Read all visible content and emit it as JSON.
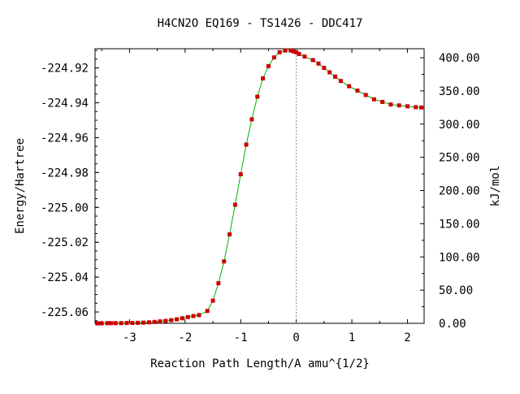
{
  "chart_data": {
    "type": "line",
    "title": "H4CN2O   EQ169 - TS1426 - DDC417",
    "xlabel": "Reaction Path Length/A amu^{1/2}",
    "ylabel": "Energy/Hartree",
    "y2label": "kJ/mol",
    "xlim": [
      -3.62,
      2.3
    ],
    "ylim": [
      -225.0665,
      -224.909
    ],
    "y2lim": [
      0,
      413.5
    ],
    "x_ticks": [
      -3,
      -2,
      -1,
      0,
      1,
      2
    ],
    "x_tick_labels": [
      "-3",
      "-2",
      "-1",
      "0",
      "1",
      "2"
    ],
    "y_ticks": [
      -224.92,
      -224.94,
      -224.96,
      -224.98,
      -225.0,
      -225.02,
      -225.04,
      -225.06
    ],
    "y_tick_labels": [
      "-224.92",
      "-224.94",
      "-224.96",
      "-224.98",
      "-225.00",
      "-225.02",
      "-225.04",
      "-225.06"
    ],
    "y2_ticks": [
      0,
      50,
      100,
      150,
      200,
      250,
      300,
      350,
      400
    ],
    "y2_tick_labels": [
      "0.00",
      "50.00",
      "100.00",
      "150.00",
      "200.00",
      "250.00",
      "300.00",
      "350.00",
      "400.00"
    ],
    "ts_x": 0,
    "grid": false,
    "line_color": "#00b000",
    "marker_color": "#cc0000",
    "ts_line_color": "#888888",
    "series": [
      {
        "x": [
          -3.58,
          -3.55,
          -3.52,
          -3.5,
          -3.4,
          -3.33,
          -3.25,
          -3.15,
          -3.05,
          -2.95,
          -2.85,
          -2.75,
          -2.65,
          -2.55,
          -2.45,
          -2.35,
          -2.25,
          -2.15,
          -2.05,
          -1.95,
          -1.85,
          -1.75,
          -1.6,
          -1.5,
          -1.4,
          -1.3,
          -1.2,
          -1.1,
          -1.0,
          -0.9,
          -0.8,
          -0.7,
          -0.6,
          -0.5,
          -0.4,
          -0.3,
          -0.2,
          -0.1,
          -0.05,
          0.0,
          0.05,
          0.15,
          0.3,
          0.4,
          0.5,
          0.6,
          0.7,
          0.8,
          0.95,
          1.1,
          1.25,
          1.4,
          1.55,
          1.7,
          1.85,
          2.0,
          2.15,
          2.25
        ],
        "y": [
          -225.0665,
          -225.0665,
          -225.0665,
          -225.0665,
          -225.0664,
          -225.0664,
          -225.0664,
          -225.0664,
          -225.0663,
          -225.0663,
          -225.0662,
          -225.0661,
          -225.0659,
          -225.0657,
          -225.0654,
          -225.0651,
          -225.0647,
          -225.0642,
          -225.0636,
          -225.0629,
          -225.0623,
          -225.0618,
          -225.0594,
          -225.0535,
          -225.0435,
          -225.031,
          -225.0155,
          -224.9985,
          -224.981,
          -224.964,
          -224.9495,
          -224.9365,
          -224.926,
          -224.919,
          -224.914,
          -224.911,
          -224.91,
          -224.91,
          -224.9105,
          -224.911,
          -224.912,
          -224.9135,
          -224.9155,
          -224.9175,
          -224.92,
          -224.9225,
          -224.925,
          -224.9275,
          -224.9305,
          -224.933,
          -224.9355,
          -224.938,
          -224.9395,
          -224.941,
          -224.9415,
          -224.942,
          -224.9425,
          -224.9427
        ]
      }
    ]
  }
}
